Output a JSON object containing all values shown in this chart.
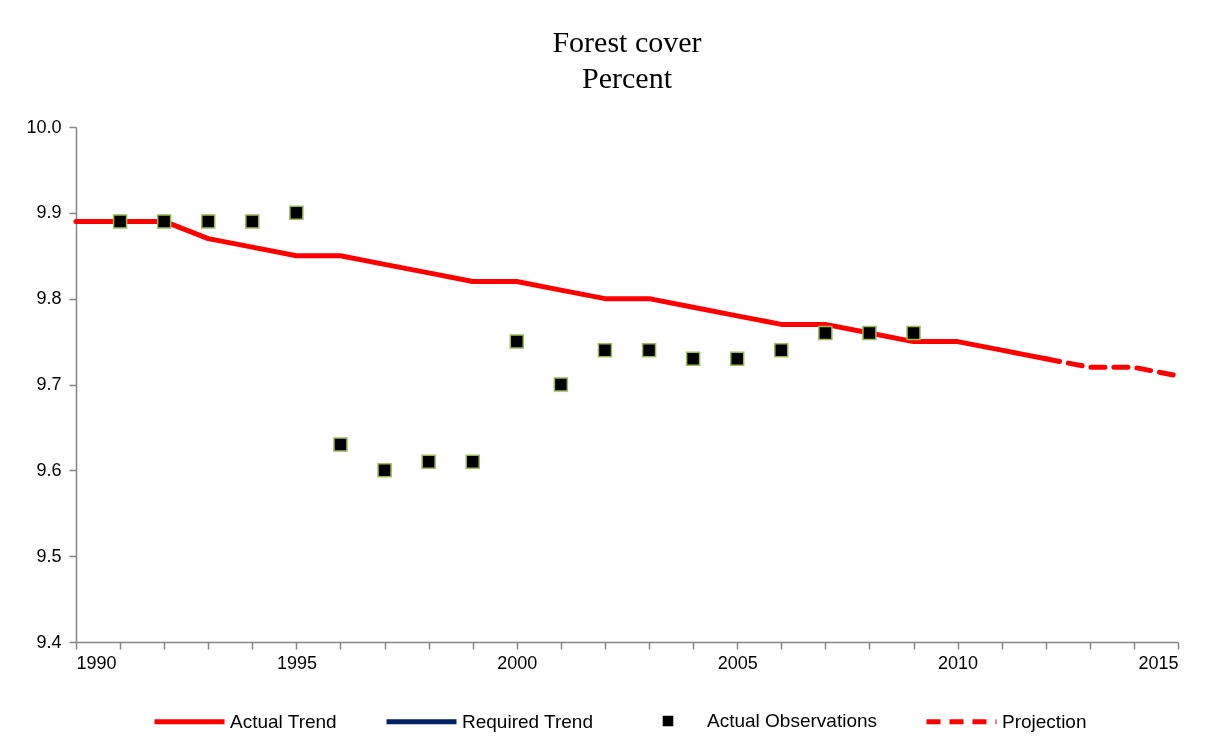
{
  "chart_data": {
    "type": "line",
    "title": "Forest cover",
    "subtitle": "Percent",
    "series": [
      {
        "name": "Actual Trend",
        "color": "#ff0000",
        "line_style": "solid",
        "x": [
          1990,
          1991,
          1992,
          1993,
          1994,
          1995,
          1996,
          1997,
          1998,
          1999,
          2000,
          2001,
          2002,
          2003,
          2004,
          2005,
          2006,
          2007,
          2008,
          2009,
          2010,
          2011,
          2012
        ],
        "values": [
          9.89,
          9.89,
          9.89,
          9.87,
          9.86,
          9.85,
          9.85,
          9.84,
          9.83,
          9.82,
          9.82,
          9.81,
          9.8,
          9.8,
          9.79,
          9.78,
          9.77,
          9.77,
          9.76,
          9.75,
          9.75,
          9.74,
          9.73
        ]
      },
      {
        "name": "Required Trend",
        "color": "#002060",
        "line_style": "solid"
      },
      {
        "name": "Actual Observations",
        "type": "scatter",
        "color": "#000000",
        "marker": "square",
        "x": [
          1991,
          1992,
          1993,
          1994,
          1995,
          1996,
          1997,
          1998,
          1999,
          2000,
          2001,
          2002,
          2003,
          2004,
          2005,
          2006,
          2007,
          2008,
          2009
        ],
        "values": [
          9.89,
          9.89,
          9.89,
          9.89,
          9.9,
          9.63,
          9.6,
          9.61,
          9.61,
          9.75,
          9.7,
          9.74,
          9.74,
          9.73,
          9.73,
          9.74,
          9.76,
          9.76,
          9.76
        ]
      },
      {
        "name": "Projection",
        "color": "#ff0000",
        "line_style": "dashed",
        "x": [
          2012,
          2013,
          2014,
          2015
        ],
        "values": [
          9.73,
          9.72,
          9.72,
          9.71
        ]
      }
    ],
    "xlim": [
      1990,
      2015
    ],
    "xticks": [
      1990,
      {
        "value": 1991,
        "label": null
      },
      {
        "value": 1992,
        "label": null
      },
      {
        "value": 1993,
        "label": null
      },
      {
        "value": 1994,
        "label": null
      },
      1995,
      {
        "value": 1996,
        "label": null
      },
      {
        "value": 1997,
        "label": null
      },
      {
        "value": 1998,
        "label": null
      },
      {
        "value": 1999,
        "label": null
      },
      2000,
      {
        "value": 2001,
        "label": null
      },
      {
        "value": 2002,
        "label": null
      },
      {
        "value": 2003,
        "label": null
      },
      {
        "value": 2004,
        "label": null
      },
      2005,
      {
        "value": 2006,
        "label": null
      },
      {
        "value": 2007,
        "label": null
      },
      {
        "value": 2008,
        "label": null
      },
      {
        "value": 2009,
        "label": null
      },
      2010,
      {
        "value": 2011,
        "label": null
      },
      {
        "value": 2012,
        "label": null
      },
      {
        "value": 2013,
        "label": null
      },
      {
        "value": 2014,
        "label": null
      },
      2015
    ],
    "ylim": [
      9.4,
      10.0
    ],
    "yticks": [
      9.4,
      9.5,
      9.6,
      9.7,
      9.8,
      9.9,
      {
        "value": 10.0,
        "label": "10.0"
      }
    ],
    "grid": false,
    "legend": "bottom"
  }
}
